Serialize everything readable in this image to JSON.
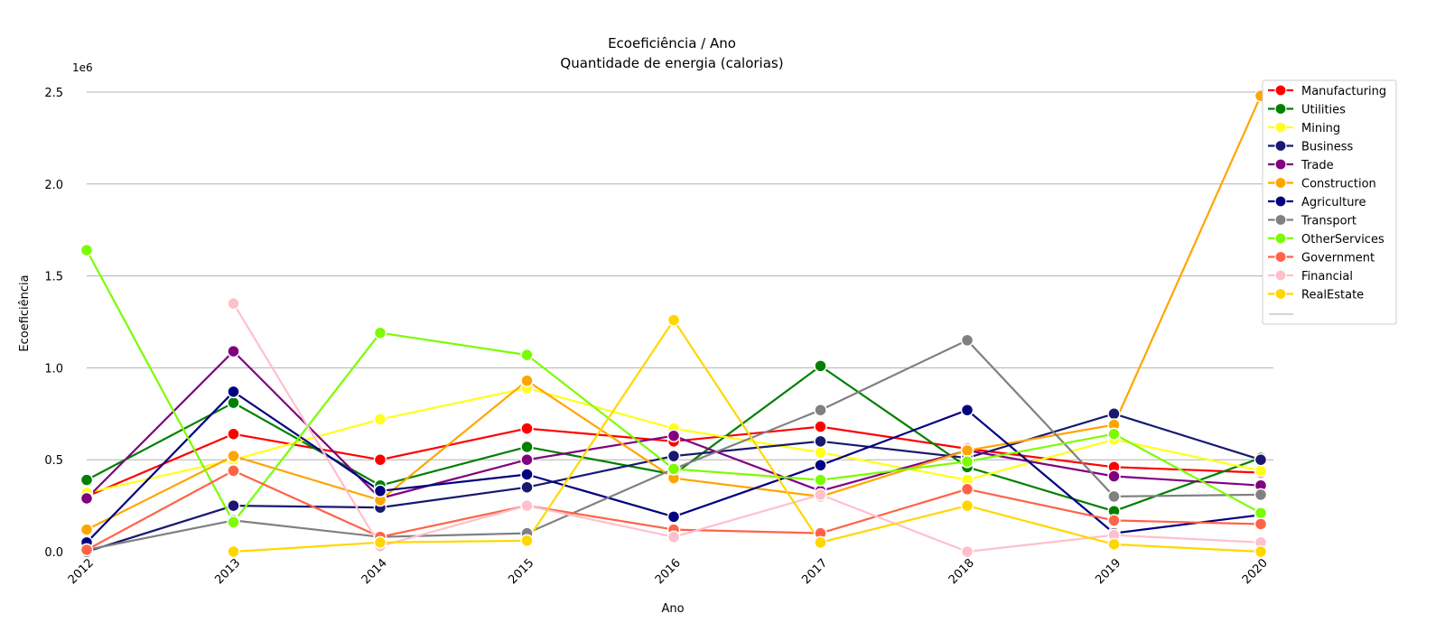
{
  "chart_data": {
    "type": "line",
    "title": "Ecoeficiência / Ano",
    "subtitle": "Quantidade de energia (calorias)",
    "xlabel": "Ano",
    "ylabel": "Ecoeficiência",
    "y_offset_label": "1e6",
    "x": [
      "2012",
      "2013",
      "2014",
      "2015",
      "2016",
      "2017",
      "2018",
      "2019",
      "2020"
    ],
    "ylim": [
      0,
      2.5
    ],
    "yticks": [
      "0.0",
      "0.5",
      "1.0",
      "1.5",
      "2.0",
      "2.5"
    ],
    "grid": "horizontal",
    "legend_position": "top-right",
    "series": [
      {
        "name": "Manufacturing",
        "color": "#ff0000",
        "values": [
          0.3,
          0.64,
          0.5,
          0.67,
          0.6,
          0.68,
          0.56,
          0.46,
          0.43
        ]
      },
      {
        "name": "Utilities",
        "color": "#008000",
        "values": [
          0.39,
          0.81,
          0.36,
          0.57,
          0.42,
          1.01,
          0.46,
          0.22,
          0.51
        ]
      },
      {
        "name": "Mining",
        "color": "#ffff1a",
        "values": [
          0.32,
          0.5,
          0.72,
          0.89,
          0.67,
          0.54,
          0.39,
          0.61,
          0.44
        ]
      },
      {
        "name": "Business",
        "color": "#191970",
        "values": [
          0.0,
          0.25,
          0.24,
          0.35,
          0.52,
          0.6,
          0.51,
          0.75,
          0.5
        ]
      },
      {
        "name": "Trade",
        "color": "#800080",
        "values": [
          0.29,
          1.09,
          0.29,
          0.5,
          0.63,
          0.33,
          0.55,
          0.41,
          0.36
        ]
      },
      {
        "name": "Construction",
        "color": "#ffa500",
        "values": [
          0.12,
          0.52,
          0.28,
          0.93,
          0.4,
          0.3,
          0.55,
          0.69,
          2.48
        ]
      },
      {
        "name": "Agriculture",
        "color": "#000080",
        "values": [
          0.05,
          0.87,
          0.33,
          0.42,
          0.19,
          0.47,
          0.77,
          0.1,
          0.2
        ]
      },
      {
        "name": "Transport",
        "color": "#808080",
        "values": [
          0.01,
          0.17,
          0.08,
          0.1,
          0.45,
          0.77,
          1.15,
          0.3,
          0.31
        ]
      },
      {
        "name": "OtherServices",
        "color": "#7cfc00",
        "values": [
          1.64,
          0.16,
          1.19,
          1.07,
          0.45,
          0.39,
          0.49,
          0.64,
          0.21
        ]
      },
      {
        "name": "Government",
        "color": "#ff6347",
        "values": [
          0.01,
          0.44,
          0.08,
          0.25,
          0.12,
          0.1,
          0.34,
          0.17,
          0.15
        ]
      },
      {
        "name": "Financial",
        "color": "#ffc0cb",
        "values": [
          null,
          1.35,
          0.03,
          0.25,
          0.08,
          0.31,
          0.0,
          0.09,
          0.05
        ]
      },
      {
        "name": "RealEstate",
        "color": "#ffd700",
        "values": [
          null,
          0.0,
          0.05,
          0.06,
          1.26,
          0.05,
          0.25,
          0.04,
          0.0
        ]
      }
    ]
  }
}
